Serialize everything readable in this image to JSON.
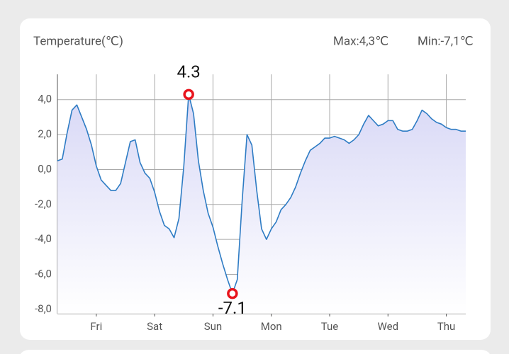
{
  "chart_data": {
    "type": "line",
    "title": "Temperature(℃)",
    "max_text": "Max:4,3℃",
    "min_text": "Min:-7,1℃",
    "max_label": "4.3",
    "min_label": "-7.1",
    "categories": [
      null,
      null,
      null,
      null,
      null,
      null,
      null,
      null,
      "Fri",
      null,
      null,
      null,
      null,
      null,
      null,
      null,
      null,
      null,
      null,
      null,
      "Sat",
      null,
      null,
      null,
      null,
      null,
      null,
      null,
      null,
      null,
      null,
      null,
      "Sun",
      null,
      null,
      null,
      null,
      null,
      null,
      null,
      null,
      null,
      null,
      null,
      "Mon",
      null,
      null,
      null,
      null,
      null,
      null,
      null,
      null,
      null,
      null,
      null,
      "Tue",
      null,
      null,
      null,
      null,
      null,
      null,
      null,
      null,
      null,
      null,
      null,
      "Wed",
      null,
      null,
      null,
      null,
      null,
      null,
      null,
      null,
      null,
      null,
      null,
      "Thu",
      null,
      null,
      null,
      null
    ],
    "series": [
      {
        "color": "#2e7cc4",
        "values": [
          0.5,
          0.6,
          2.1,
          3.4,
          3.7,
          3.0,
          2.3,
          1.4,
          0.2,
          -0.6,
          -0.9,
          -1.2,
          -1.2,
          -0.8,
          0.4,
          1.6,
          1.7,
          0.4,
          -0.2,
          -0.5,
          -1.3,
          -2.4,
          -3.2,
          -3.4,
          -3.9,
          -2.8,
          0.2,
          4.3,
          3.2,
          0.5,
          -1.2,
          -2.5,
          -3.3,
          -4.4,
          -5.4,
          -6.3,
          -7.1,
          -6.3,
          -1.8,
          2.0,
          1.4,
          -1.2,
          -3.4,
          -4.0,
          -3.4,
          -3.0,
          -2.3,
          -2.0,
          -1.6,
          -1.0,
          -0.2,
          0.5,
          1.1,
          1.3,
          1.5,
          1.8,
          1.8,
          1.9,
          1.8,
          1.7,
          1.5,
          1.7,
          2.0,
          2.6,
          3.1,
          2.8,
          2.5,
          2.6,
          2.8,
          2.8,
          2.3,
          2.2,
          2.2,
          2.3,
          2.8,
          3.4,
          3.2,
          2.9,
          2.7,
          2.6,
          2.4,
          2.3,
          2.3,
          2.2,
          2.2
        ]
      }
    ],
    "ylim": [
      -8.25,
      5.45
    ],
    "yticks": [
      {
        "value": 4,
        "label": "4,0"
      },
      {
        "value": 2,
        "label": "2,0"
      },
      {
        "value": 0,
        "label": "0,0"
      },
      {
        "value": -2,
        "label": "-2,0"
      },
      {
        "value": -4,
        "label": "-4,0"
      },
      {
        "value": -6,
        "label": "-6,0"
      },
      {
        "value": -8,
        "label": "-8,0"
      }
    ],
    "grid": true,
    "marker_color": "#e8141c"
  }
}
